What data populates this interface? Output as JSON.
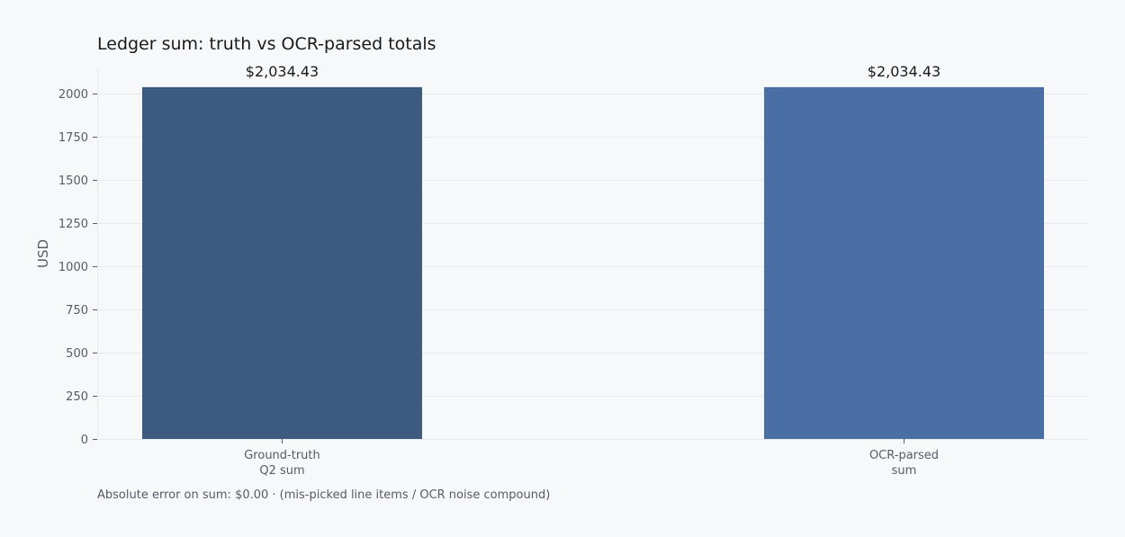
{
  "chart_data": {
    "type": "bar",
    "title": "Ledger sum: truth vs OCR-parsed totals",
    "xlabel": "",
    "ylabel": "USD",
    "categories": [
      [
        "Ground-truth",
        "Q2 sum"
      ],
      [
        "OCR-parsed",
        "sum"
      ]
    ],
    "values": [
      2034.43,
      2034.43
    ],
    "data_labels": [
      "$2,034.43",
      "$2,034.43"
    ],
    "colors": [
      "#3d5a80",
      "#4a6fa5"
    ],
    "ylim": [
      0,
      2150
    ],
    "yticks": [
      0,
      250,
      500,
      750,
      1000,
      1250,
      1500,
      1750,
      2000
    ],
    "grid": true,
    "legend": "none"
  },
  "footnote": "Absolute error on sum: $0.00  ·  (mis-picked line items / OCR noise compound)"
}
